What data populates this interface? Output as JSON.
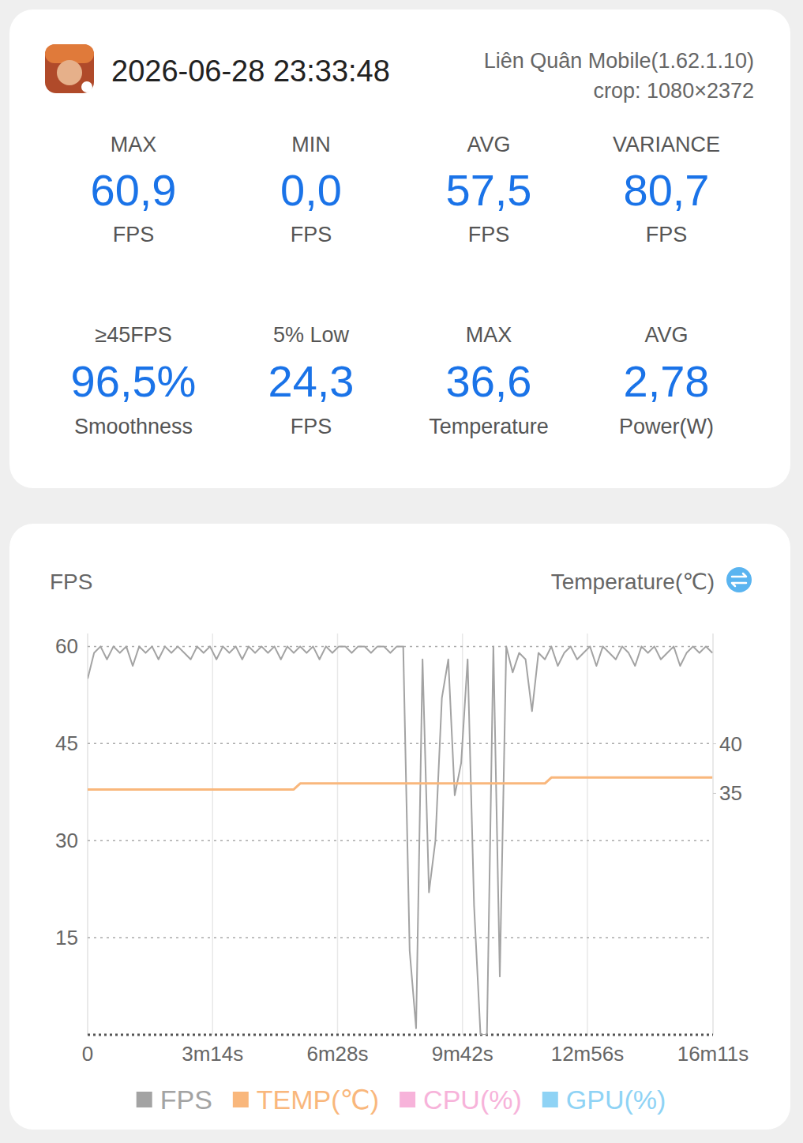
{
  "header": {
    "title": "2026-06-28 23:33:48",
    "app": "Liên Quân Mobile(1.62.1.10)",
    "crop": "crop: 1080×2372"
  },
  "stats": [
    {
      "label": "MAX",
      "value": "60,9",
      "unit": "FPS"
    },
    {
      "label": "MIN",
      "value": "0,0",
      "unit": "FPS"
    },
    {
      "label": "AVG",
      "value": "57,5",
      "unit": "FPS"
    },
    {
      "label": "VARIANCE",
      "value": "80,7",
      "unit": "FPS"
    },
    {
      "label": "≥45FPS",
      "value": "96,5%",
      "unit": "Smoothness"
    },
    {
      "label": "5% Low",
      "value": "24,3",
      "unit": "FPS"
    },
    {
      "label": "MAX",
      "value": "36,6",
      "unit": "Temperature"
    },
    {
      "label": "AVG",
      "value": "2,78",
      "unit": "Power(W)"
    }
  ],
  "chart_data": {
    "type": "line",
    "y_label": "FPS",
    "y2_label": "Temperature(℃)",
    "grid": true,
    "legend": "bottom",
    "x": [
      0,
      10,
      20,
      30,
      40,
      50,
      60,
      70,
      80,
      90,
      100,
      110,
      120,
      130,
      140,
      150,
      160,
      170,
      180,
      190,
      200,
      210,
      220,
      230,
      240,
      250,
      260,
      270,
      280,
      290,
      300,
      310,
      320,
      330,
      340,
      350,
      360,
      370,
      380,
      390,
      400,
      410,
      420,
      430,
      440,
      450,
      460,
      470,
      480,
      490,
      500,
      510,
      520,
      530,
      540,
      550,
      560,
      570,
      580,
      590,
      600,
      610,
      620,
      630,
      640,
      650,
      660,
      670,
      680,
      690,
      700,
      710,
      720,
      730,
      740,
      750,
      760,
      770,
      780,
      790,
      800,
      810,
      820,
      830,
      840,
      850,
      860,
      870,
      880,
      890,
      900,
      910,
      920,
      930,
      940,
      950,
      960,
      970
    ],
    "xlim": [
      0,
      971
    ],
    "xticks": [
      0,
      {
        "value": 194,
        "label": "3m14s"
      },
      {
        "value": 388,
        "label": "6m28s"
      },
      {
        "value": 582,
        "label": "9m42s"
      },
      {
        "value": 776,
        "label": "12m56s"
      },
      {
        "value": 971,
        "label": "16m11s"
      }
    ],
    "ylim": [
      0,
      62
    ],
    "yticks": [
      15,
      30,
      45,
      60
    ],
    "y2lim": [
      10.7,
      51.1
    ],
    "y2ticks": [
      35,
      40
    ],
    "series": [
      {
        "name": "FPS",
        "color": "#a3a3a3",
        "values": [
          55,
          59,
          60,
          58,
          60,
          59,
          60,
          57,
          60,
          59,
          60,
          58,
          60,
          59,
          60,
          59,
          58,
          60,
          59,
          60,
          58,
          60,
          59,
          60,
          58,
          60,
          59,
          60,
          59,
          60,
          58,
          60,
          59,
          60,
          59,
          60,
          58,
          60,
          59,
          60,
          60,
          59,
          60,
          60,
          59,
          60,
          60,
          59,
          60,
          60,
          13,
          1,
          58,
          22,
          30,
          52,
          58,
          37,
          42,
          58,
          20,
          0,
          0,
          60,
          9,
          60,
          56,
          59,
          58,
          50,
          59,
          58,
          60,
          57,
          59,
          60,
          58,
          59,
          60,
          57,
          60,
          59,
          58,
          60,
          59,
          57,
          60,
          59,
          60,
          58,
          59,
          60,
          57,
          59,
          60,
          59,
          60,
          59
        ]
      },
      {
        "name": "TEMP(℃)",
        "color": "#f9b77c",
        "axis": "y2",
        "values": [
          35.4,
          35.4,
          35.4,
          35.4,
          35.4,
          35.4,
          35.4,
          35.4,
          35.4,
          35.4,
          35.4,
          35.4,
          35.4,
          35.4,
          35.4,
          35.4,
          35.4,
          35.4,
          35.4,
          35.4,
          35.4,
          35.4,
          35.4,
          35.4,
          35.4,
          35.4,
          35.4,
          35.4,
          35.4,
          35.4,
          35.4,
          35.4,
          35.4,
          36.0,
          36.0,
          36.0,
          36.0,
          36.0,
          36.0,
          36.0,
          36.0,
          36.0,
          36.0,
          36.0,
          36.0,
          36.0,
          36.0,
          36.0,
          36.0,
          36.0,
          36.0,
          36.0,
          36.0,
          36.0,
          36.0,
          36.0,
          36.0,
          36.0,
          36.0,
          36.0,
          36.0,
          36.0,
          36.0,
          36.0,
          36.0,
          36.0,
          36.0,
          36.0,
          36.0,
          36.0,
          36.0,
          36.0,
          36.6,
          36.6,
          36.6,
          36.6,
          36.6,
          36.6,
          36.6,
          36.6,
          36.6,
          36.6,
          36.6,
          36.6,
          36.6,
          36.6,
          36.6,
          36.6,
          36.6,
          36.6,
          36.6,
          36.6,
          36.6,
          36.6,
          36.6,
          36.6,
          36.6,
          36.6
        ]
      },
      {
        "name": "CPU(%)",
        "color": "#f7b3da",
        "values": [
          null,
          null,
          null,
          null,
          null,
          null,
          null,
          null,
          null,
          null,
          null,
          null,
          null,
          null,
          null,
          null,
          null,
          null,
          null,
          null,
          null,
          null,
          null,
          null,
          null,
          null,
          null,
          null,
          null,
          null,
          null,
          null,
          null,
          null,
          null,
          null,
          null,
          null,
          null,
          null,
          null,
          null,
          null,
          null,
          null,
          null,
          null,
          null,
          null,
          null,
          null,
          null,
          null,
          null,
          null,
          null,
          null,
          null,
          null,
          null,
          null,
          null,
          null,
          null,
          null,
          null,
          null,
          null,
          null,
          null,
          null,
          null,
          null,
          null,
          null,
          null,
          null,
          null,
          null,
          null,
          null,
          null,
          null,
          null,
          null,
          null,
          null,
          null,
          null,
          null,
          null,
          null,
          null,
          null,
          null,
          null,
          null,
          null
        ]
      },
      {
        "name": "GPU(%)",
        "color": "#8fd3f5",
        "values": [
          null,
          null,
          null,
          null,
          null,
          null,
          null,
          null,
          null,
          null,
          null,
          null,
          null,
          null,
          null,
          null,
          null,
          null,
          null,
          null,
          null,
          null,
          null,
          null,
          null,
          null,
          null,
          null,
          null,
          null,
          null,
          null,
          null,
          null,
          null,
          null,
          null,
          null,
          null,
          null,
          null,
          null,
          null,
          null,
          null,
          null,
          null,
          null,
          null,
          null,
          null,
          null,
          null,
          null,
          null,
          null,
          null,
          null,
          null,
          null,
          null,
          null,
          null,
          null,
          null,
          null,
          null,
          null,
          null,
          null,
          null,
          null,
          null,
          null,
          null,
          null,
          null,
          null,
          null,
          null,
          null,
          null,
          null,
          null,
          null,
          null,
          null,
          null,
          null,
          null,
          null,
          null,
          null,
          null,
          null,
          null,
          null,
          null
        ]
      }
    ]
  }
}
